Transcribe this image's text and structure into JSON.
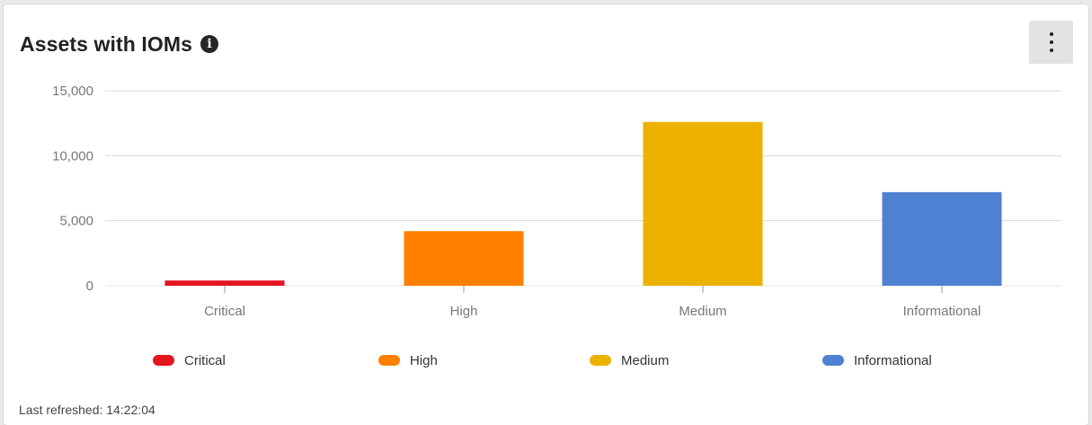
{
  "widget": {
    "title": "Assets with IOMs",
    "info_icon": "info-icon",
    "menu_icon": "more-vertical-icon",
    "last_refreshed": "Last refreshed: 14:22:04"
  },
  "chart_data": {
    "type": "bar",
    "title": "",
    "xlabel": "",
    "ylabel": "",
    "categories": [
      "Critical",
      "High",
      "Medium",
      "Informational"
    ],
    "values": [
      400,
      4200,
      12600,
      7200
    ],
    "colors": [
      "#e3151f",
      "#ff7f00",
      "#edb100",
      "#4f81d2"
    ],
    "ylim": [
      0,
      15000
    ],
    "yticks": [
      0,
      5000,
      10000,
      15000
    ],
    "ytick_labels": [
      "0",
      "5,000",
      "10,000",
      "15,000"
    ],
    "grid": true,
    "legend": {
      "position": "bottom",
      "entries": [
        "Critical",
        "High",
        "Medium",
        "Informational"
      ]
    }
  }
}
